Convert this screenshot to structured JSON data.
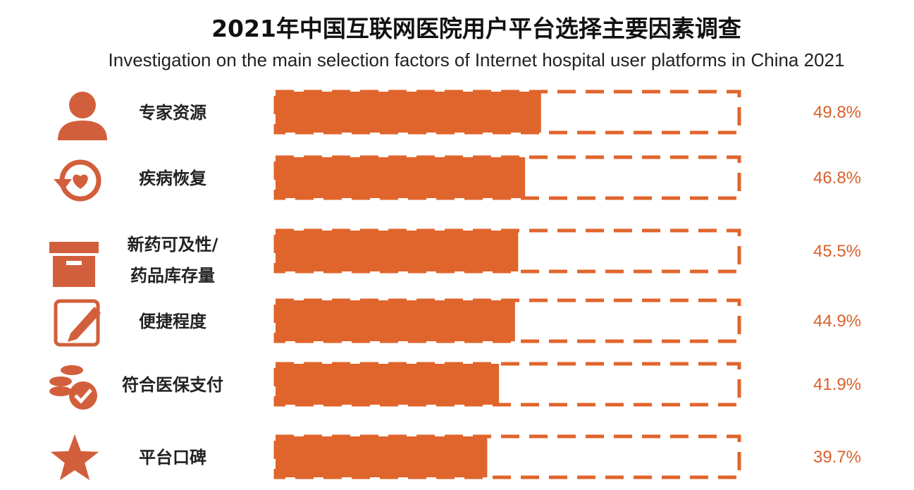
{
  "chart_data": {
    "type": "bar",
    "orientation": "horizontal",
    "title": "2021年中国互联网医院用户平台选择主要因素调查",
    "subtitle": "Investigation on the  main selection factors of Internet hospital user platforms in China 2021",
    "categories": [
      "专家资源",
      "疾病恢复",
      "新药可及性/药品库存量",
      "便捷程度",
      "符合医保支付",
      "平台口碑"
    ],
    "category_lines": [
      [
        "专家资源"
      ],
      [
        "疾病恢复"
      ],
      [
        "新药可及性/",
        "药品库存量"
      ],
      [
        "便捷程度"
      ],
      [
        "符合医保支付"
      ],
      [
        "平台口碑"
      ]
    ],
    "values": [
      49.8,
      46.8,
      45.5,
      44.9,
      41.9,
      39.7
    ],
    "value_labels": [
      "49.8%",
      "46.8%",
      "45.5%",
      "44.9%",
      "41.9%",
      "39.7%"
    ],
    "icons": [
      "person-icon",
      "recovery-clock-icon",
      "box-icon",
      "edit-pencil-icon",
      "coins-check-icon",
      "star-icon"
    ],
    "xlim": [
      0,
      100
    ],
    "grid": false,
    "legend": "none",
    "colors": {
      "bar": "#e0652c",
      "text": "#d9602c",
      "icon": "#d25f3c"
    }
  }
}
